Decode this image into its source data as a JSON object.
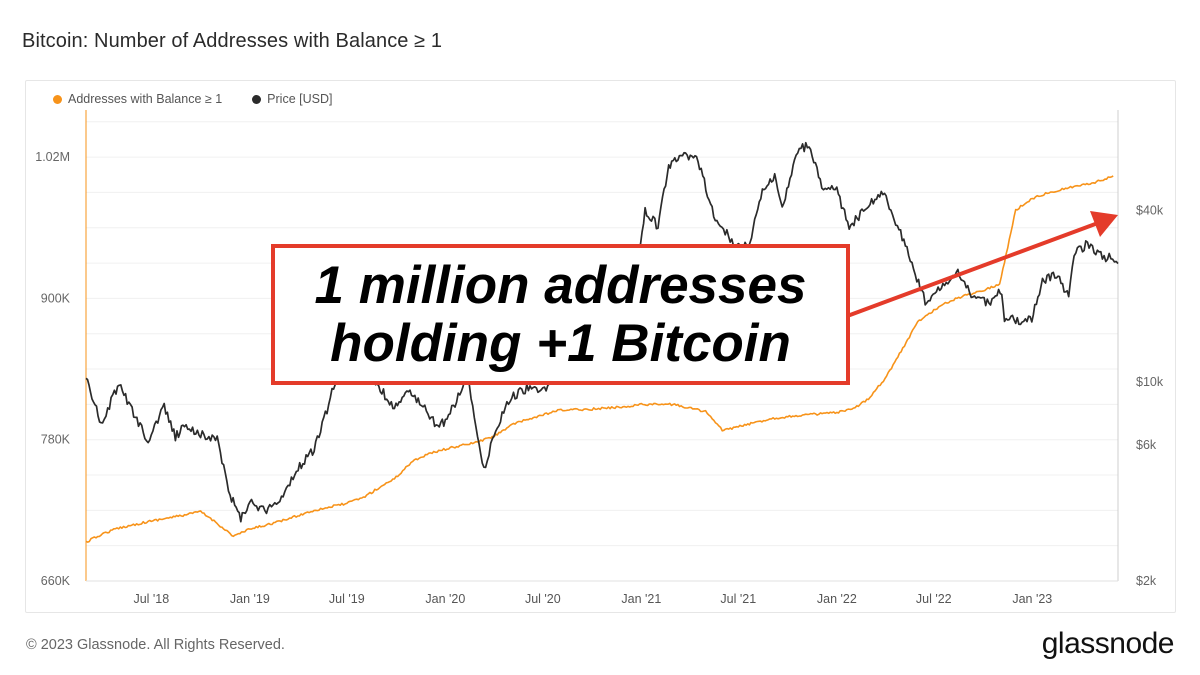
{
  "page_title": "Bitcoin: Number of Addresses with Balance ≥ 1",
  "footer": {
    "copyright": "© 2023 Glassnode. All Rights Reserved.",
    "logo": "glassnode"
  },
  "annotation": {
    "line1": "1 million addresses",
    "line2": "holding +1 Bitcoin",
    "border_color": "#e43b2a",
    "arrow_color": "#e43b2a"
  },
  "chart_data": {
    "type": "line",
    "title": "Bitcoin: Number of Addresses with Balance ≥ 1",
    "legend_position": "top-left",
    "grid": "horizontal",
    "x_range": [
      "2018-03-01",
      "2023-06-10"
    ],
    "x_ticks": [
      {
        "date": "2018-07-01",
        "label": "Jul '18"
      },
      {
        "date": "2019-01-01",
        "label": "Jan '19"
      },
      {
        "date": "2019-07-01",
        "label": "Jul '19"
      },
      {
        "date": "2020-01-01",
        "label": "Jan '20"
      },
      {
        "date": "2020-07-01",
        "label": "Jul '20"
      },
      {
        "date": "2021-01-01",
        "label": "Jan '21"
      },
      {
        "date": "2021-07-01",
        "label": "Jul '21"
      },
      {
        "date": "2022-01-01",
        "label": "Jan '22"
      },
      {
        "date": "2022-07-01",
        "label": "Jul '22"
      },
      {
        "date": "2023-01-01",
        "label": "Jan '23"
      }
    ],
    "y_left": {
      "scale": "linear",
      "range": [
        660000,
        1060000
      ],
      "ticks": [
        {
          "value": 660000,
          "label": "660K"
        },
        {
          "value": 780000,
          "label": "780K"
        },
        {
          "value": 900000,
          "label": "900K"
        },
        {
          "value": 1020000,
          "label": "1.02M"
        }
      ]
    },
    "y_right": {
      "scale": "log",
      "range": [
        2000,
        90000
      ],
      "ticks": [
        {
          "value": 2000,
          "label": "$2k"
        },
        {
          "value": 6000,
          "label": "$6k"
        },
        {
          "value": 10000,
          "label": "$10k"
        },
        {
          "value": 40000,
          "label": "$40k"
        }
      ]
    },
    "series": [
      {
        "name": "Addresses with Balance ≥ 1",
        "axis": "left",
        "color": "#f7931a",
        "points": [
          [
            "2018-03-01",
            693000
          ],
          [
            "2018-04-01",
            700000
          ],
          [
            "2018-05-01",
            705000
          ],
          [
            "2018-07-01",
            711000
          ],
          [
            "2018-09-01",
            716000
          ],
          [
            "2018-10-01",
            719000
          ],
          [
            "2018-11-01",
            709000
          ],
          [
            "2018-12-01",
            698000
          ],
          [
            "2019-01-01",
            704000
          ],
          [
            "2019-03-01",
            711000
          ],
          [
            "2019-05-01",
            720000
          ],
          [
            "2019-07-01",
            726000
          ],
          [
            "2019-08-01",
            731000
          ],
          [
            "2019-10-01",
            748000
          ],
          [
            "2019-11-01",
            762000
          ],
          [
            "2019-12-01",
            768000
          ],
          [
            "2020-01-01",
            772000
          ],
          [
            "2020-03-01",
            778000
          ],
          [
            "2020-04-01",
            783000
          ],
          [
            "2020-05-01",
            792000
          ],
          [
            "2020-06-01",
            797000
          ],
          [
            "2020-08-01",
            805000
          ],
          [
            "2020-10-01",
            806000
          ],
          [
            "2020-12-01",
            808000
          ],
          [
            "2021-01-01",
            810000
          ],
          [
            "2021-03-01",
            810000
          ],
          [
            "2021-05-01",
            804000
          ],
          [
            "2021-06-01",
            788000
          ],
          [
            "2021-07-01",
            791000
          ],
          [
            "2021-09-01",
            798000
          ],
          [
            "2021-11-01",
            801000
          ],
          [
            "2022-01-01",
            803000
          ],
          [
            "2022-02-01",
            806000
          ],
          [
            "2022-03-01",
            815000
          ],
          [
            "2022-04-01",
            832000
          ],
          [
            "2022-05-01",
            855000
          ],
          [
            "2022-06-01",
            880000
          ],
          [
            "2022-07-01",
            890000
          ],
          [
            "2022-08-01",
            898000
          ],
          [
            "2022-09-01",
            903000
          ],
          [
            "2022-10-01",
            907000
          ],
          [
            "2022-11-01",
            912000
          ],
          [
            "2022-12-01",
            975000
          ],
          [
            "2023-01-01",
            985000
          ],
          [
            "2023-02-01",
            990000
          ],
          [
            "2023-03-01",
            993000
          ],
          [
            "2023-04-01",
            996000
          ],
          [
            "2023-05-01",
            999000
          ],
          [
            "2023-06-01",
            1004000
          ]
        ]
      },
      {
        "name": "Price [USD]",
        "axis": "right",
        "color": "#2b2b2b",
        "points": [
          [
            "2018-03-01",
            10500
          ],
          [
            "2018-03-15",
            8500
          ],
          [
            "2018-04-01",
            7000
          ],
          [
            "2018-04-20",
            8900
          ],
          [
            "2018-05-05",
            9600
          ],
          [
            "2018-06-01",
            7500
          ],
          [
            "2018-06-25",
            6200
          ],
          [
            "2018-07-25",
            8200
          ],
          [
            "2018-08-15",
            6400
          ],
          [
            "2018-09-01",
            7000
          ],
          [
            "2018-10-01",
            6600
          ],
          [
            "2018-11-01",
            6300
          ],
          [
            "2018-11-25",
            4000
          ],
          [
            "2018-12-15",
            3300
          ],
          [
            "2019-01-01",
            3800
          ],
          [
            "2019-02-01",
            3500
          ],
          [
            "2019-03-01",
            3900
          ],
          [
            "2019-04-01",
            5000
          ],
          [
            "2019-05-01",
            5800
          ],
          [
            "2019-05-25",
            8000
          ],
          [
            "2019-06-25",
            12500
          ],
          [
            "2019-07-15",
            10000
          ],
          [
            "2019-08-15",
            10500
          ],
          [
            "2019-09-25",
            8200
          ],
          [
            "2019-10-27",
            9300
          ],
          [
            "2019-12-15",
            7100
          ],
          [
            "2020-01-01",
            7200
          ],
          [
            "2020-02-12",
            10300
          ],
          [
            "2020-03-13",
            4900
          ],
          [
            "2020-04-01",
            6500
          ],
          [
            "2020-05-01",
            8800
          ],
          [
            "2020-06-01",
            9500
          ],
          [
            "2020-07-01",
            9200
          ],
          [
            "2020-08-01",
            11500
          ],
          [
            "2020-09-01",
            10500
          ],
          [
            "2020-10-01",
            10800
          ],
          [
            "2020-11-01",
            13700
          ],
          [
            "2020-12-01",
            19000
          ],
          [
            "2020-12-25",
            26000
          ],
          [
            "2021-01-08",
            40000
          ],
          [
            "2021-02-01",
            35000
          ],
          [
            "2021-02-21",
            57000
          ],
          [
            "2021-03-13",
            61000
          ],
          [
            "2021-04-14",
            63000
          ],
          [
            "2021-05-19",
            37000
          ],
          [
            "2021-06-22",
            31000
          ],
          [
            "2021-07-20",
            30000
          ],
          [
            "2021-08-15",
            47000
          ],
          [
            "2021-09-07",
            52000
          ],
          [
            "2021-09-21",
            41000
          ],
          [
            "2021-10-20",
            65000
          ],
          [
            "2021-11-10",
            68000
          ],
          [
            "2021-12-04",
            48000
          ],
          [
            "2022-01-01",
            47000
          ],
          [
            "2022-01-24",
            35000
          ],
          [
            "2022-03-28",
            47000
          ],
          [
            "2022-05-09",
            30000
          ],
          [
            "2022-06-18",
            18500
          ],
          [
            "2022-07-15",
            22000
          ],
          [
            "2022-08-15",
            24000
          ],
          [
            "2022-09-15",
            19500
          ],
          [
            "2022-10-15",
            19000
          ],
          [
            "2022-11-05",
            21000
          ],
          [
            "2022-11-10",
            16500
          ],
          [
            "2022-12-31",
            16500
          ],
          [
            "2023-01-20",
            22500
          ],
          [
            "2023-02-15",
            24000
          ],
          [
            "2023-03-10",
            20000
          ],
          [
            "2023-03-20",
            28000
          ],
          [
            "2023-04-14",
            30500
          ],
          [
            "2023-05-15",
            27000
          ],
          [
            "2023-05-31",
            27500
          ],
          [
            "2023-06-10",
            26000
          ]
        ]
      }
    ]
  }
}
